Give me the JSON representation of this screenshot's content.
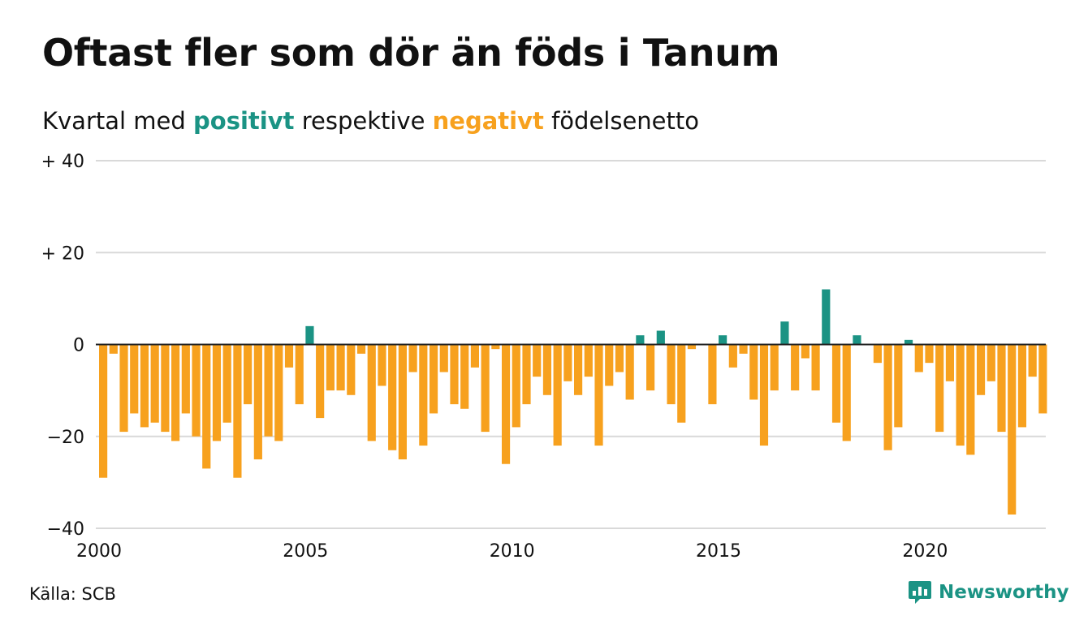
{
  "title": "Oftast fler som dör än föds i Tanum",
  "subtitle": {
    "prefix": "Kvartal med",
    "positive_word": "positivt",
    "middle": "respektive",
    "negative_word": "negativt",
    "suffix": "födelsenetto"
  },
  "source": "Källa: SCB",
  "brand": {
    "name": "Newsworthy",
    "icon": "newsworthy-logo-icon"
  },
  "colors": {
    "positive": "#1b9384",
    "negative": "#f7a11e",
    "grid": "#d9d9d9",
    "zero_line": "#222222",
    "text": "#111111"
  },
  "chart_data": {
    "type": "bar",
    "period": "quarter",
    "start_year": 2000,
    "ylim": [
      -40,
      40
    ],
    "y_ticks": [
      {
        "value": 40,
        "label": "+ 40"
      },
      {
        "value": 20,
        "label": "+ 20"
      },
      {
        "value": 0,
        "label": "0"
      },
      {
        "value": -20,
        "label": "−20"
      },
      {
        "value": -40,
        "label": "−40"
      }
    ],
    "x_ticks": [
      {
        "year": 2000,
        "label": "2000"
      },
      {
        "year": 2005,
        "label": "2005"
      },
      {
        "year": 2010,
        "label": "2010"
      },
      {
        "year": 2015,
        "label": "2015"
      },
      {
        "year": 2020,
        "label": "2020"
      }
    ],
    "grid": true,
    "values": [
      -29,
      -2,
      -19,
      -15,
      -18,
      -17,
      -19,
      -21,
      -15,
      -20,
      -27,
      -21,
      -17,
      -29,
      -13,
      -25,
      -20,
      -21,
      -5,
      -13,
      4,
      -16,
      -10,
      -10,
      -11,
      -2,
      -21,
      -9,
      -23,
      -25,
      -6,
      -22,
      -15,
      -6,
      -13,
      -14,
      -5,
      -19,
      -1,
      -26,
      -18,
      -13,
      -7,
      -11,
      -22,
      -8,
      -11,
      -7,
      -22,
      -9,
      -6,
      -12,
      2,
      -10,
      3,
      -13,
      -17,
      -1,
      0,
      -13,
      2,
      -5,
      -2,
      -12,
      -22,
      -10,
      5,
      -10,
      -3,
      -10,
      12,
      -17,
      -21,
      2,
      0,
      -4,
      -23,
      -18,
      1,
      -6,
      -4,
      -19,
      -8,
      -22,
      -24,
      -11,
      -8,
      -19,
      -37,
      -18,
      -7,
      -15
    ]
  }
}
